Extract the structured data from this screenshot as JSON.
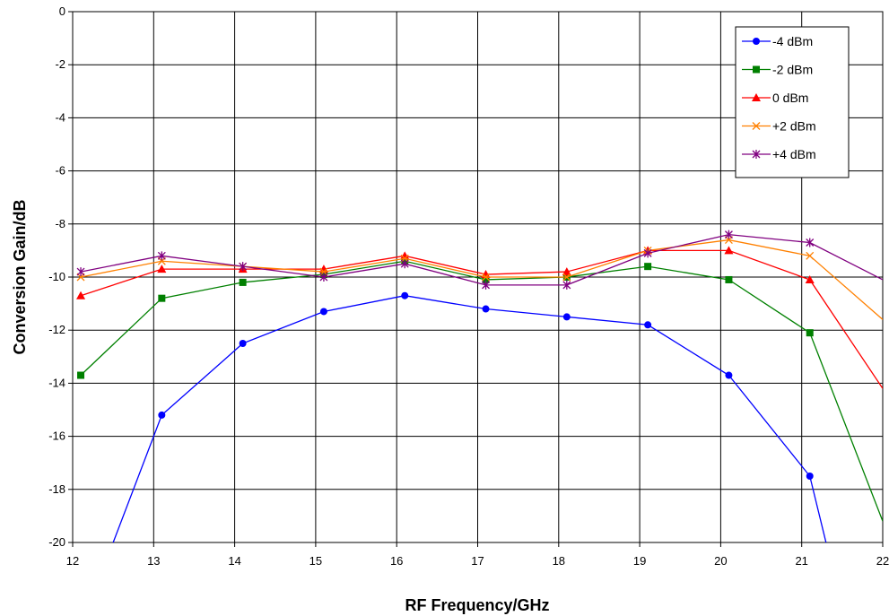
{
  "chart_data": {
    "type": "line",
    "xlabel": "RF Frequency/GHz",
    "ylabel": "Conversion Gain/dB",
    "xlim": [
      12,
      22
    ],
    "ylim": [
      -20,
      0
    ],
    "x_ticks": [
      "12",
      "13",
      "14",
      "15",
      "16",
      "17",
      "18",
      "19",
      "20",
      "21",
      "22"
    ],
    "y_ticks": [
      "0",
      "-2",
      "-4",
      "-6",
      "-8",
      "-10",
      "-12",
      "-14",
      "-16",
      "-18",
      "-20"
    ],
    "grid": true,
    "legend_position": "top-right",
    "series": [
      {
        "name": "-4 dBm",
        "color": "#0000ff",
        "marker": "circle",
        "points": [
          [
            12.5,
            -20.0
          ],
          [
            13.1,
            -15.2
          ],
          [
            14.1,
            -12.5
          ],
          [
            15.1,
            -11.3
          ],
          [
            16.1,
            -10.7
          ],
          [
            17.1,
            -11.2
          ],
          [
            18.1,
            -11.5
          ],
          [
            19.1,
            -11.8
          ],
          [
            20.1,
            -13.7
          ],
          [
            21.1,
            -17.5
          ],
          [
            21.3,
            -20.0
          ]
        ]
      },
      {
        "name": "-2 dBm",
        "color": "#008000",
        "marker": "square",
        "points": [
          [
            12.1,
            -13.7
          ],
          [
            13.1,
            -10.8
          ],
          [
            14.1,
            -10.2
          ],
          [
            15.1,
            -9.9
          ],
          [
            16.1,
            -9.4
          ],
          [
            17.1,
            -10.1
          ],
          [
            18.1,
            -10.0
          ],
          [
            19.1,
            -9.6
          ],
          [
            20.1,
            -10.1
          ],
          [
            21.1,
            -12.1
          ],
          [
            22.0,
            -19.2
          ]
        ]
      },
      {
        "name": "0 dBm",
        "color": "#ff0000",
        "marker": "triangle",
        "points": [
          [
            12.1,
            -10.7
          ],
          [
            13.1,
            -9.7
          ],
          [
            14.1,
            -9.7
          ],
          [
            15.1,
            -9.7
          ],
          [
            16.1,
            -9.2
          ],
          [
            17.1,
            -9.9
          ],
          [
            18.1,
            -9.8
          ],
          [
            19.1,
            -9.0
          ],
          [
            20.1,
            -9.0
          ],
          [
            21.1,
            -10.1
          ],
          [
            22.0,
            -14.2
          ]
        ]
      },
      {
        "name": "+2 dBm",
        "color": "#ff8000",
        "marker": "x",
        "points": [
          [
            12.1,
            -10.0
          ],
          [
            13.1,
            -9.4
          ],
          [
            14.1,
            -9.6
          ],
          [
            15.1,
            -9.8
          ],
          [
            16.1,
            -9.3
          ],
          [
            17.1,
            -10.0
          ],
          [
            18.1,
            -10.0
          ],
          [
            19.1,
            -9.0
          ],
          [
            20.1,
            -8.6
          ],
          [
            21.1,
            -9.2
          ],
          [
            22.0,
            -11.6
          ]
        ]
      },
      {
        "name": "+4 dBm",
        "color": "#800080",
        "marker": "star",
        "points": [
          [
            12.1,
            -9.8
          ],
          [
            13.1,
            -9.2
          ],
          [
            14.1,
            -9.6
          ],
          [
            15.1,
            -10.0
          ],
          [
            16.1,
            -9.5
          ],
          [
            17.1,
            -10.3
          ],
          [
            18.1,
            -10.3
          ],
          [
            19.1,
            -9.1
          ],
          [
            20.1,
            -8.4
          ],
          [
            21.1,
            -8.7
          ],
          [
            22.0,
            -10.1
          ]
        ]
      }
    ]
  }
}
